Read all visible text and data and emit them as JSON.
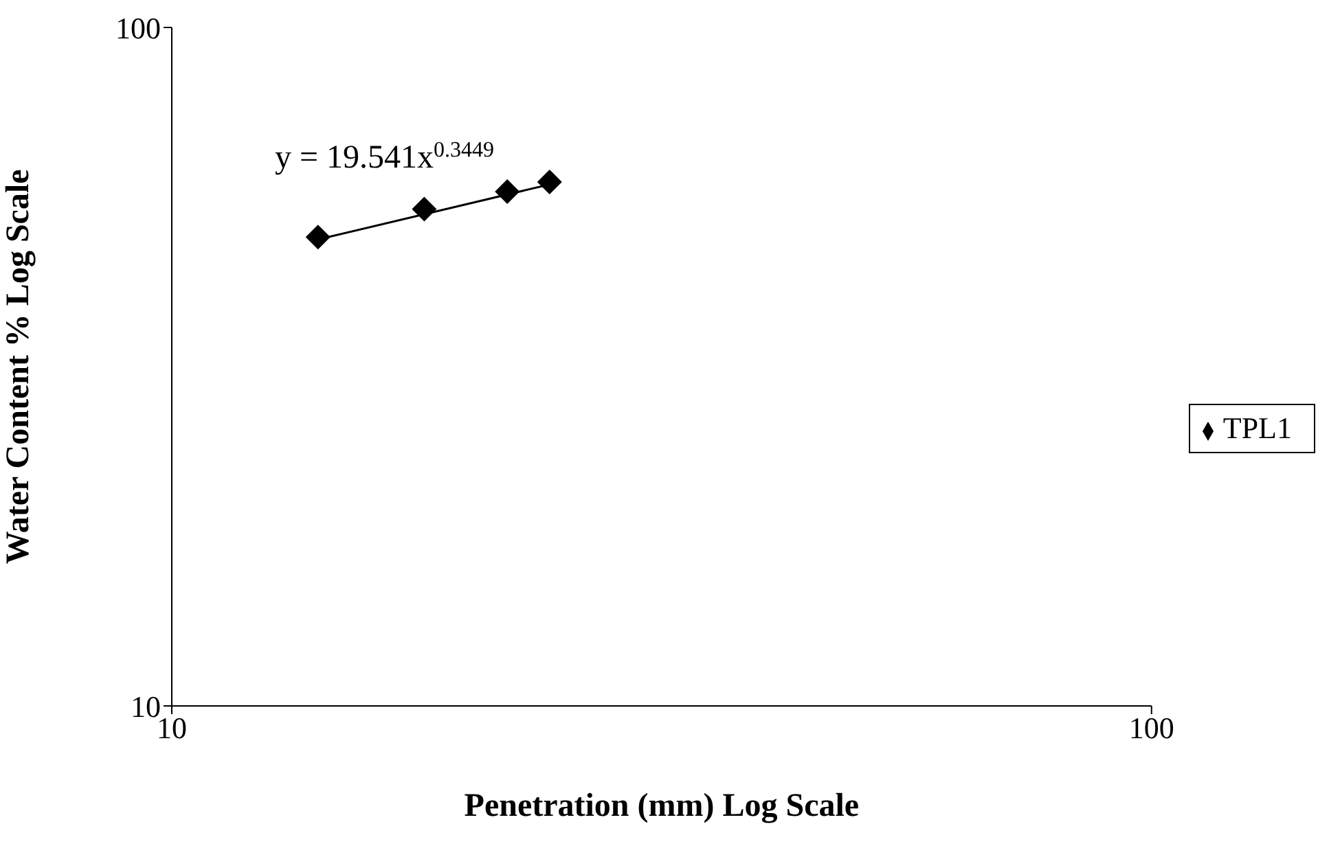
{
  "chart_data": {
    "type": "scatter",
    "xlabel": "Penetration (mm)  Log Scale",
    "ylabel": "Water Content  % Log Scale",
    "log": "xy",
    "xlim": [
      10,
      100
    ],
    "xticks": [
      10,
      100
    ],
    "ylim": [
      10,
      100
    ],
    "yticks": [
      10,
      100
    ],
    "grid": false,
    "legend": "right",
    "series": [
      {
        "name": "TPL1",
        "color": "#000000",
        "marker": "diamond",
        "x": [
          14.1,
          18.1,
          22,
          24.3
        ],
        "values": [
          49.1,
          54,
          57.3,
          59.2
        ]
      },
      {
        "type": "line",
        "color": "#000000",
        "marker": "none",
        "x": [
          14.1,
          24.3
        ],
        "values": [
          48.7,
          58.7
        ]
      }
    ],
    "annotations": [
      "y = 19.541x$^{0.3449}$"
    ]
  }
}
